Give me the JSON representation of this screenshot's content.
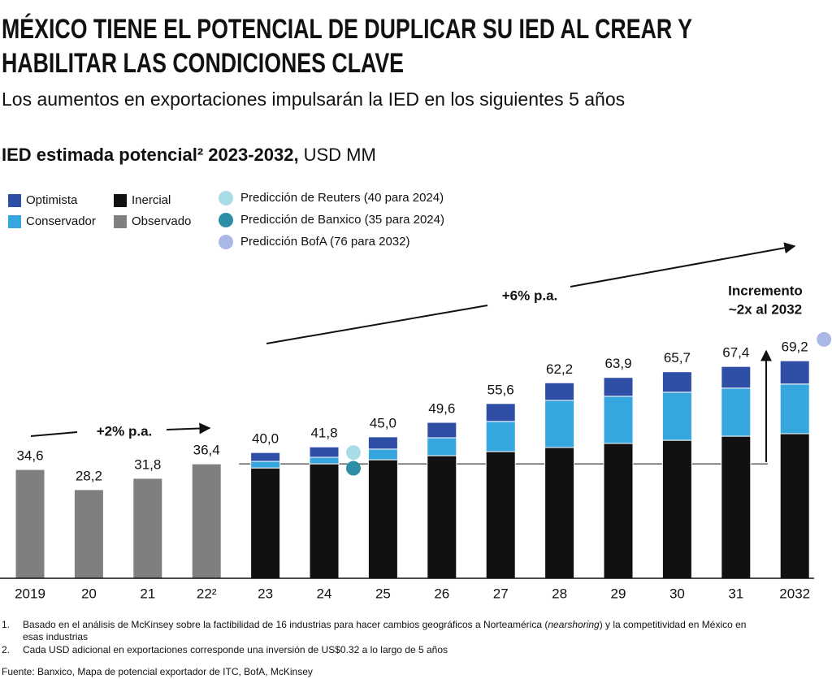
{
  "header": {
    "title_lines": [
      "MÉXICO TIENE EL POTENCIAL DE DUPLICAR SU IED AL CREAR Y",
      "HABILITAR LAS CONDICIONES CLAVE"
    ],
    "subtitle": "Los aumentos en exportaciones impulsarán la IED en los siguientes 5 años"
  },
  "chart_data": {
    "type": "bar",
    "stacked": true,
    "title": "IED estimada potencial² 2023-2032,",
    "unit": "USD MM",
    "categories": [
      "2019",
      "20",
      "21",
      "22²",
      "23",
      "24",
      "25",
      "26",
      "27",
      "28",
      "29",
      "30",
      "31",
      "2032"
    ],
    "ylim": [
      0,
      90
    ],
    "series": [
      {
        "name": "Observado",
        "color": "#7f7f7f",
        "values": [
          34.6,
          28.2,
          31.8,
          36.4,
          null,
          null,
          null,
          null,
          null,
          null,
          null,
          null,
          null,
          null
        ],
        "value_labels": [
          "34,6",
          "28,2",
          "31,8",
          "36,4",
          null,
          null,
          null,
          null,
          null,
          null,
          null,
          null,
          null,
          null
        ]
      },
      {
        "name": "Inercial",
        "color": "#111111",
        "values": [
          null,
          null,
          null,
          null,
          35.1,
          36.4,
          37.7,
          39.0,
          40.3,
          41.6,
          42.9,
          43.9,
          45.2,
          46.0
        ]
      },
      {
        "name": "Conservador",
        "color": "#36a6de",
        "values": [
          null,
          null,
          null,
          null,
          2.1,
          2.1,
          3.4,
          5.7,
          9.6,
          15.0,
          15.0,
          15.3,
          15.3,
          15.8
        ]
      },
      {
        "name": "Optimista",
        "color": "#2f4ea6",
        "values": [
          null,
          null,
          null,
          null,
          2.8,
          3.3,
          3.9,
          4.9,
          5.7,
          5.6,
          6.0,
          6.5,
          6.9,
          7.4
        ]
      }
    ],
    "totals": {
      "values": [
        null,
        null,
        null,
        null,
        40.0,
        41.8,
        45.0,
        49.6,
        55.6,
        62.2,
        63.9,
        65.7,
        67.4,
        69.2
      ],
      "value_labels": [
        null,
        null,
        null,
        null,
        "40,0",
        "41,8",
        "45,0",
        "49,6",
        "55,6",
        "62,2",
        "63,9",
        "65,7",
        "67,4",
        "69,2"
      ]
    },
    "predictions": [
      {
        "name": "Predicción de Reuters (40 para 2024)",
        "color": "#a8dde8",
        "category": "24",
        "value": 40
      },
      {
        "name": "Predicción de Banxico (35 para 2024)",
        "color": "#2d8fa6",
        "category": "24",
        "value": 35
      },
      {
        "name": "Predicción BofA (76 para 2032)",
        "color": "#aab8e6",
        "category": "2032",
        "value": 76
      }
    ],
    "annotations": [
      "+2% p.a.",
      "+6% p.a.",
      "Incremento",
      "~2x al 2032"
    ]
  },
  "notes": [
    {
      "number": "1.",
      "lines": [
        [
          "Basado en el análisis de McKinsey sobre la factibilidad de 16 industrias para hacer cambios geográficos a Norteamérica (",
          "nearshoring",
          ") y la competitividad en México en"
        ],
        [
          "esas industrias"
        ]
      ]
    },
    {
      "number": "2.",
      "lines": [
        [
          "Cada USD adicional en exportaciones corresponde una inversión de US$0.32 a lo largo de 5 años"
        ]
      ]
    }
  ],
  "source": "Fuente: Banxico, Mapa de potencial exportador de ITC, BofA, McKinsey"
}
